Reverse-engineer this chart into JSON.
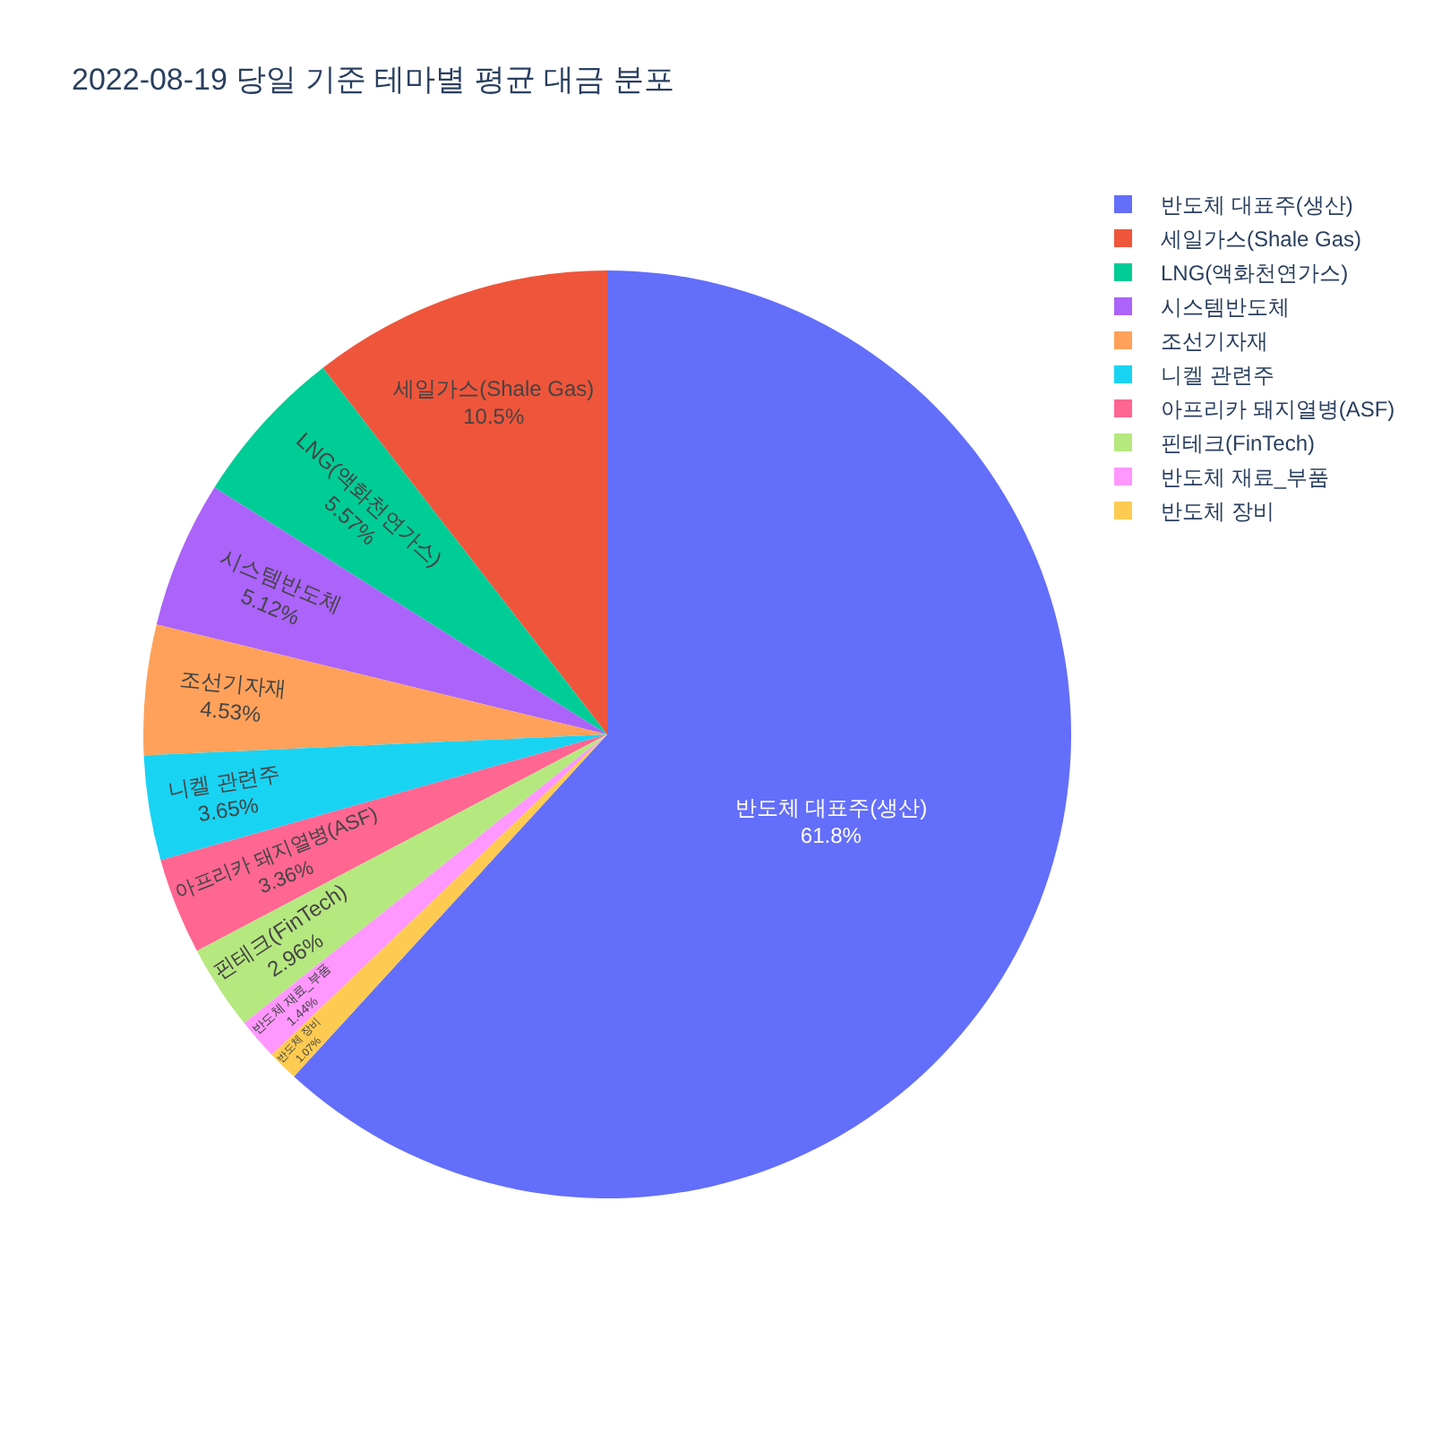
{
  "chart_data": {
    "type": "pie",
    "title": "2022-08-19 당일 기준 테마별 평균 대금 분포",
    "categories": [
      "반도체 대표주(생산)",
      "세일가스(Shale Gas)",
      "LNG(액화천연가스)",
      "시스템반도체",
      "조선기자재",
      "니켈 관련주",
      "아프리카 돼지열병(ASF)",
      "핀테크(FinTech)",
      "반도체 재료_부품",
      "반도체 장비"
    ],
    "values": [
      61.8,
      10.5,
      5.57,
      5.12,
      4.53,
      3.65,
      3.36,
      2.96,
      1.44,
      1.07
    ],
    "colors": [
      "#636efa",
      "#ef553b",
      "#00cc96",
      "#ab63fa",
      "#ffa15a",
      "#19d3f3",
      "#ff6692",
      "#b6e880",
      "#ff97ff",
      "#fecb52"
    ],
    "value_labels": [
      "61.8%",
      "10.5%",
      "5.57%",
      "5.12%",
      "4.53%",
      "3.65%",
      "3.36%",
      "2.96%",
      "1.44%",
      "1.07%"
    ],
    "legend": "top right"
  }
}
